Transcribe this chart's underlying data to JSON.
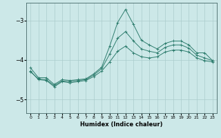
{
  "xlabel": "Humidex (Indice chaleur)",
  "background_color": "#cce8e8",
  "grid_color": "#aacccc",
  "line_color": "#2e7d6e",
  "xlim": [
    -0.5,
    23.5
  ],
  "ylim": [
    -5.35,
    -2.55
  ],
  "yticks": [
    -5,
    -4,
    -3
  ],
  "xticks": [
    0,
    1,
    2,
    3,
    4,
    5,
    6,
    7,
    8,
    9,
    10,
    11,
    12,
    13,
    14,
    15,
    16,
    17,
    18,
    19,
    20,
    21,
    22,
    23
  ],
  "line1_x": [
    0,
    1,
    2,
    3,
    4,
    5,
    6,
    7,
    8,
    9,
    10,
    11,
    12,
    13,
    14,
    15,
    16,
    17,
    18,
    19,
    20,
    21,
    22,
    23
  ],
  "line1_y": [
    -4.2,
    -4.45,
    -4.45,
    -4.62,
    -4.5,
    -4.52,
    -4.5,
    -4.48,
    -4.35,
    -4.18,
    -3.65,
    -3.05,
    -2.72,
    -3.1,
    -3.5,
    -3.62,
    -3.72,
    -3.58,
    -3.52,
    -3.52,
    -3.62,
    -3.82,
    -3.82,
    -4.02
  ],
  "line2_x": [
    0,
    1,
    2,
    3,
    4,
    5,
    6,
    7,
    8,
    9,
    10,
    11,
    12,
    13,
    14,
    15,
    16,
    17,
    18,
    19,
    20,
    21,
    22,
    23
  ],
  "line2_y": [
    -4.3,
    -4.48,
    -4.5,
    -4.65,
    -4.53,
    -4.55,
    -4.52,
    -4.5,
    -4.38,
    -4.22,
    -3.85,
    -3.45,
    -3.28,
    -3.52,
    -3.72,
    -3.78,
    -3.82,
    -3.68,
    -3.62,
    -3.62,
    -3.7,
    -3.88,
    -3.95,
    -4.02
  ],
  "line3_x": [
    0,
    1,
    2,
    3,
    4,
    5,
    6,
    7,
    8,
    9,
    10,
    11,
    12,
    13,
    14,
    15,
    16,
    17,
    18,
    19,
    20,
    21,
    22,
    23
  ],
  "line3_y": [
    -4.28,
    -4.5,
    -4.52,
    -4.68,
    -4.55,
    -4.58,
    -4.55,
    -4.52,
    -4.42,
    -4.28,
    -4.05,
    -3.78,
    -3.65,
    -3.82,
    -3.92,
    -3.95,
    -3.92,
    -3.8,
    -3.75,
    -3.75,
    -3.8,
    -3.95,
    -4.02,
    -4.05
  ]
}
